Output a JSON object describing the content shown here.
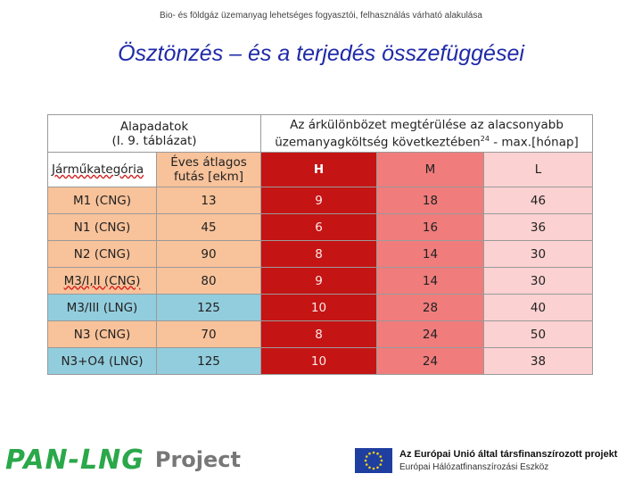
{
  "header": {
    "top_text": "Bio- és földgáz üzemanyag lehetséges fogyasztói, felhasználás várható alakulása",
    "title": "Ösztönzés – és a terjedés összefüggései"
  },
  "table": {
    "group_left_line1": "Alapadatok",
    "group_left_line2": "(I. 9. táblázat)",
    "group_right_line1": "Az árkülönbözet megtérülése az alacsonyabb",
    "group_right_line2": "üzemanyagköltség következtében",
    "group_right_sup": "24",
    "group_right_tail": " - max.[hónap]",
    "col_vehicle": "Járműkategória",
    "col_run_line1": "Éves átlagos",
    "col_run_line2": "futás [ekm]",
    "col_h": "H",
    "col_m": "M",
    "col_l": "L",
    "rows": [
      {
        "vehicle": "M1 (CNG)",
        "run": "13",
        "h": "9",
        "m": "18",
        "l": "46",
        "lng": false
      },
      {
        "vehicle": "N1 (CNG)",
        "run": "45",
        "h": "6",
        "m": "16",
        "l": "36",
        "lng": false
      },
      {
        "vehicle": "N2 (CNG)",
        "run": "90",
        "h": "8",
        "m": "14",
        "l": "30",
        "lng": false
      },
      {
        "vehicle": "M3/I,II (CNG)",
        "run": "80",
        "h": "9",
        "m": "14",
        "l": "30",
        "lng": false
      },
      {
        "vehicle": "M3/III (LNG)",
        "run": "125",
        "h": "10",
        "m": "28",
        "l": "40",
        "lng": true
      },
      {
        "vehicle": "N3 (CNG)",
        "run": "70",
        "h": "8",
        "m": "24",
        "l": "50",
        "lng": false
      },
      {
        "vehicle": "N3+O4 (LNG)",
        "run": "125",
        "h": "10",
        "m": "24",
        "l": "38",
        "lng": true
      }
    ]
  },
  "footer": {
    "logo_main": "PAN-LNG",
    "logo_project": "Project",
    "eu_line1": "Az Európai Unió által társfinanszírozott projekt",
    "eu_line2": "Európai Hálózatfinanszírozási Eszköz"
  },
  "colors": {
    "title": "#1f2aa8",
    "h_col": "#c51414",
    "m_col": "#f07c7c",
    "l_col": "#fcd1d1",
    "cng": "#f8c29a",
    "lng": "#92cddd",
    "logo_green": "#2aa84a"
  }
}
